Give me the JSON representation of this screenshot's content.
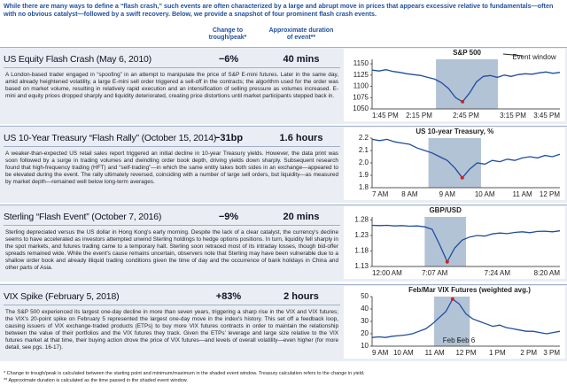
{
  "header": {
    "text": "While there are many ways to define a “flash crash,” such events are often characterized by a large and abrupt move in prices that appears excessive relative to fundamentals—often with no obvious catalyst—followed by a swift recovery. Below, we provide a snapshot of four prominent flash crash events."
  },
  "columns": {
    "change": "Change to trough/peak*",
    "duration": "Approximate duration of event**"
  },
  "rows": [
    {
      "title": "US Equity Flash Crash (May 6, 2010)",
      "change": "−6%",
      "duration": "40 mins",
      "text": "A London-based trader engaged in “spoofing” in an attempt to manipulate the price of S&P E-mini futures. Later in the same day, amid already heightened volatility, a large E-mini sell order triggered a sell-off in the contracts; the algorithm used for the order was based on market volume, resulting in relatively rapid execution and an intensification of selling pressure as volumes increased. E-mini and equity prices dropped sharply and liquidity deteriorated, creating price distortions until market participants stepped back in.",
      "chart": {
        "type": "line",
        "title": "S&P 500",
        "annotation": "Event window",
        "xticks": [
          "1:45 PM",
          "2:15 PM",
          "2:45 PM",
          "3:15 PM",
          "3:45 PM"
        ],
        "ylim": [
          1050,
          1160
        ],
        "yticks": [
          1050,
          1075,
          1100,
          1125,
          1150
        ],
        "values": [
          1136,
          1134,
          1137,
          1133,
          1131,
          1128,
          1126,
          1124,
          1120,
          1116,
          1108,
          1095,
          1075,
          1066,
          1085,
          1110,
          1122,
          1124,
          1120,
          1125,
          1122,
          1126,
          1128,
          1127,
          1130,
          1132,
          1129,
          1131
        ]
      }
    },
    {
      "title": "US 10-Year Treasury “Flash Rally” (October 15, 2014)",
      "change": "−31bp",
      "duration": "1.6 hours",
      "text": "A weaker-than-expected US retail sales report triggered an initial decline in 10-year Treasury yields. However, the data print was soon followed by a surge in trading volumes and dwindling order book depth, driving yields down sharply. Subsequent research found that high-frequency trading (HFT) and “self-trading”—in which the same entity takes both sides in an exchange—appeared to be elevated during the event. The rally ultimately reversed, coinciding with a number of large sell orders, but liquidity—as measured by market depth—remained well below long-term averages.",
      "chart": {
        "type": "line",
        "title": "US 10-year Treasury, %",
        "xticks": [
          "7 AM",
          "8 AM",
          "9 AM",
          "10 AM",
          "11 AM",
          "12 PM"
        ],
        "ylim": [
          1.8,
          2.2
        ],
        "yticks": [
          1.8,
          1.9,
          {
            "value": 2,
            "label": "2.0"
          },
          2.1,
          2.2
        ],
        "values": [
          2.19,
          2.18,
          2.19,
          2.17,
          2.16,
          2.15,
          2.12,
          2.1,
          2.08,
          2.05,
          2.02,
          1.96,
          1.88,
          1.95,
          2.0,
          1.99,
          2.02,
          2.01,
          2.03,
          2.02,
          2.04,
          2.05,
          2.04,
          2.06,
          2.05,
          2.07
        ]
      }
    },
    {
      "title": "Sterling “Flash Event” (October 7, 2016)",
      "change": "−9%",
      "duration": "20 mins",
      "text": "Sterling depreciated versus the US dollar in Hong Kong's early morning. Despite the lack of a clear catalyst, the currency's decline seems to have accelerated as investors attempted unwind Sterling holdings to hedge options positions. In turn, liquidity fell sharply in the spot markets, and futures trading came to a temporary halt. Sterling soon retraced most of its intraday losses, though bid-offer spreads remained wide. While the event's cause remains uncertain, observers note that Sterling may have been vulnerable due to a shallow order book and already illiquid trading conditions given the time of day and the occurrence of bank holidays in China and other parts of Asia.",
      "chart": {
        "type": "line",
        "title": "GBP/USD",
        "xticks": [
          "12:00 AM",
          "7:07 AM",
          "7:24 AM",
          "8:20 AM"
        ],
        "ylim": [
          1.13,
          1.29
        ],
        "yticks": [
          1.13,
          1.18,
          1.23,
          1.28
        ],
        "values": [
          1.263,
          1.262,
          1.263,
          1.261,
          1.262,
          1.26,
          1.261,
          1.258,
          1.25,
          1.2,
          1.145,
          1.19,
          1.215,
          1.225,
          1.23,
          1.228,
          1.235,
          1.238,
          1.236,
          1.24,
          1.242,
          1.239,
          1.243,
          1.244,
          1.242,
          1.245
        ]
      }
    },
    {
      "title": "VIX Spike (February 5, 2018)",
      "change": "+83%",
      "duration": "2 hours",
      "text": "The S&P 500 experienced its largest one-day decline in more than seven years, triggering a sharp rise in the VIX and VIX futures; the VIX's 20-point spike on February 5 represented the largest one-day move in the index's history. This set off a feedback loop, causing issuers of VIX exchange-traded products (ETPs) to buy more VIX futures contracts in order to maintain the relationship between the value of their portfolios and the VIX futures they track. Given the ETPs' leverage and large size relative to the VIX futures market at that time, their buying action drove the price of VIX futures—and levels of overall volatility—even higher (for more detail, see pgs. 16-17).",
      "chart": {
        "type": "line",
        "title": "Feb/Mar VIX Futures (weighted avg.)",
        "annotations": [
          "Feb 5",
          "Feb 6"
        ],
        "xticks": [
          "9 AM",
          "10 AM",
          "11 AM",
          "12 PM",
          "1 PM",
          "2 PM",
          "3 PM"
        ],
        "ylim": [
          10,
          50
        ],
        "yticks": [
          10,
          20,
          30,
          40,
          50
        ],
        "values": [
          17,
          17.5,
          17,
          18,
          18.5,
          19,
          20,
          22,
          24,
          28,
          33,
          38,
          48,
          44,
          36,
          32,
          30,
          28,
          26,
          27,
          25,
          24,
          23,
          22,
          22,
          21,
          20,
          21,
          22
        ]
      }
    }
  ],
  "footnotes": [
    "* Change to trough/peak is calculated between the starting point and minimum/maximum in the shaded event window. Treasury calculation refers to the change in yield.",
    "** Approximate duration is calculated as the time passed in the shaded event window."
  ]
}
